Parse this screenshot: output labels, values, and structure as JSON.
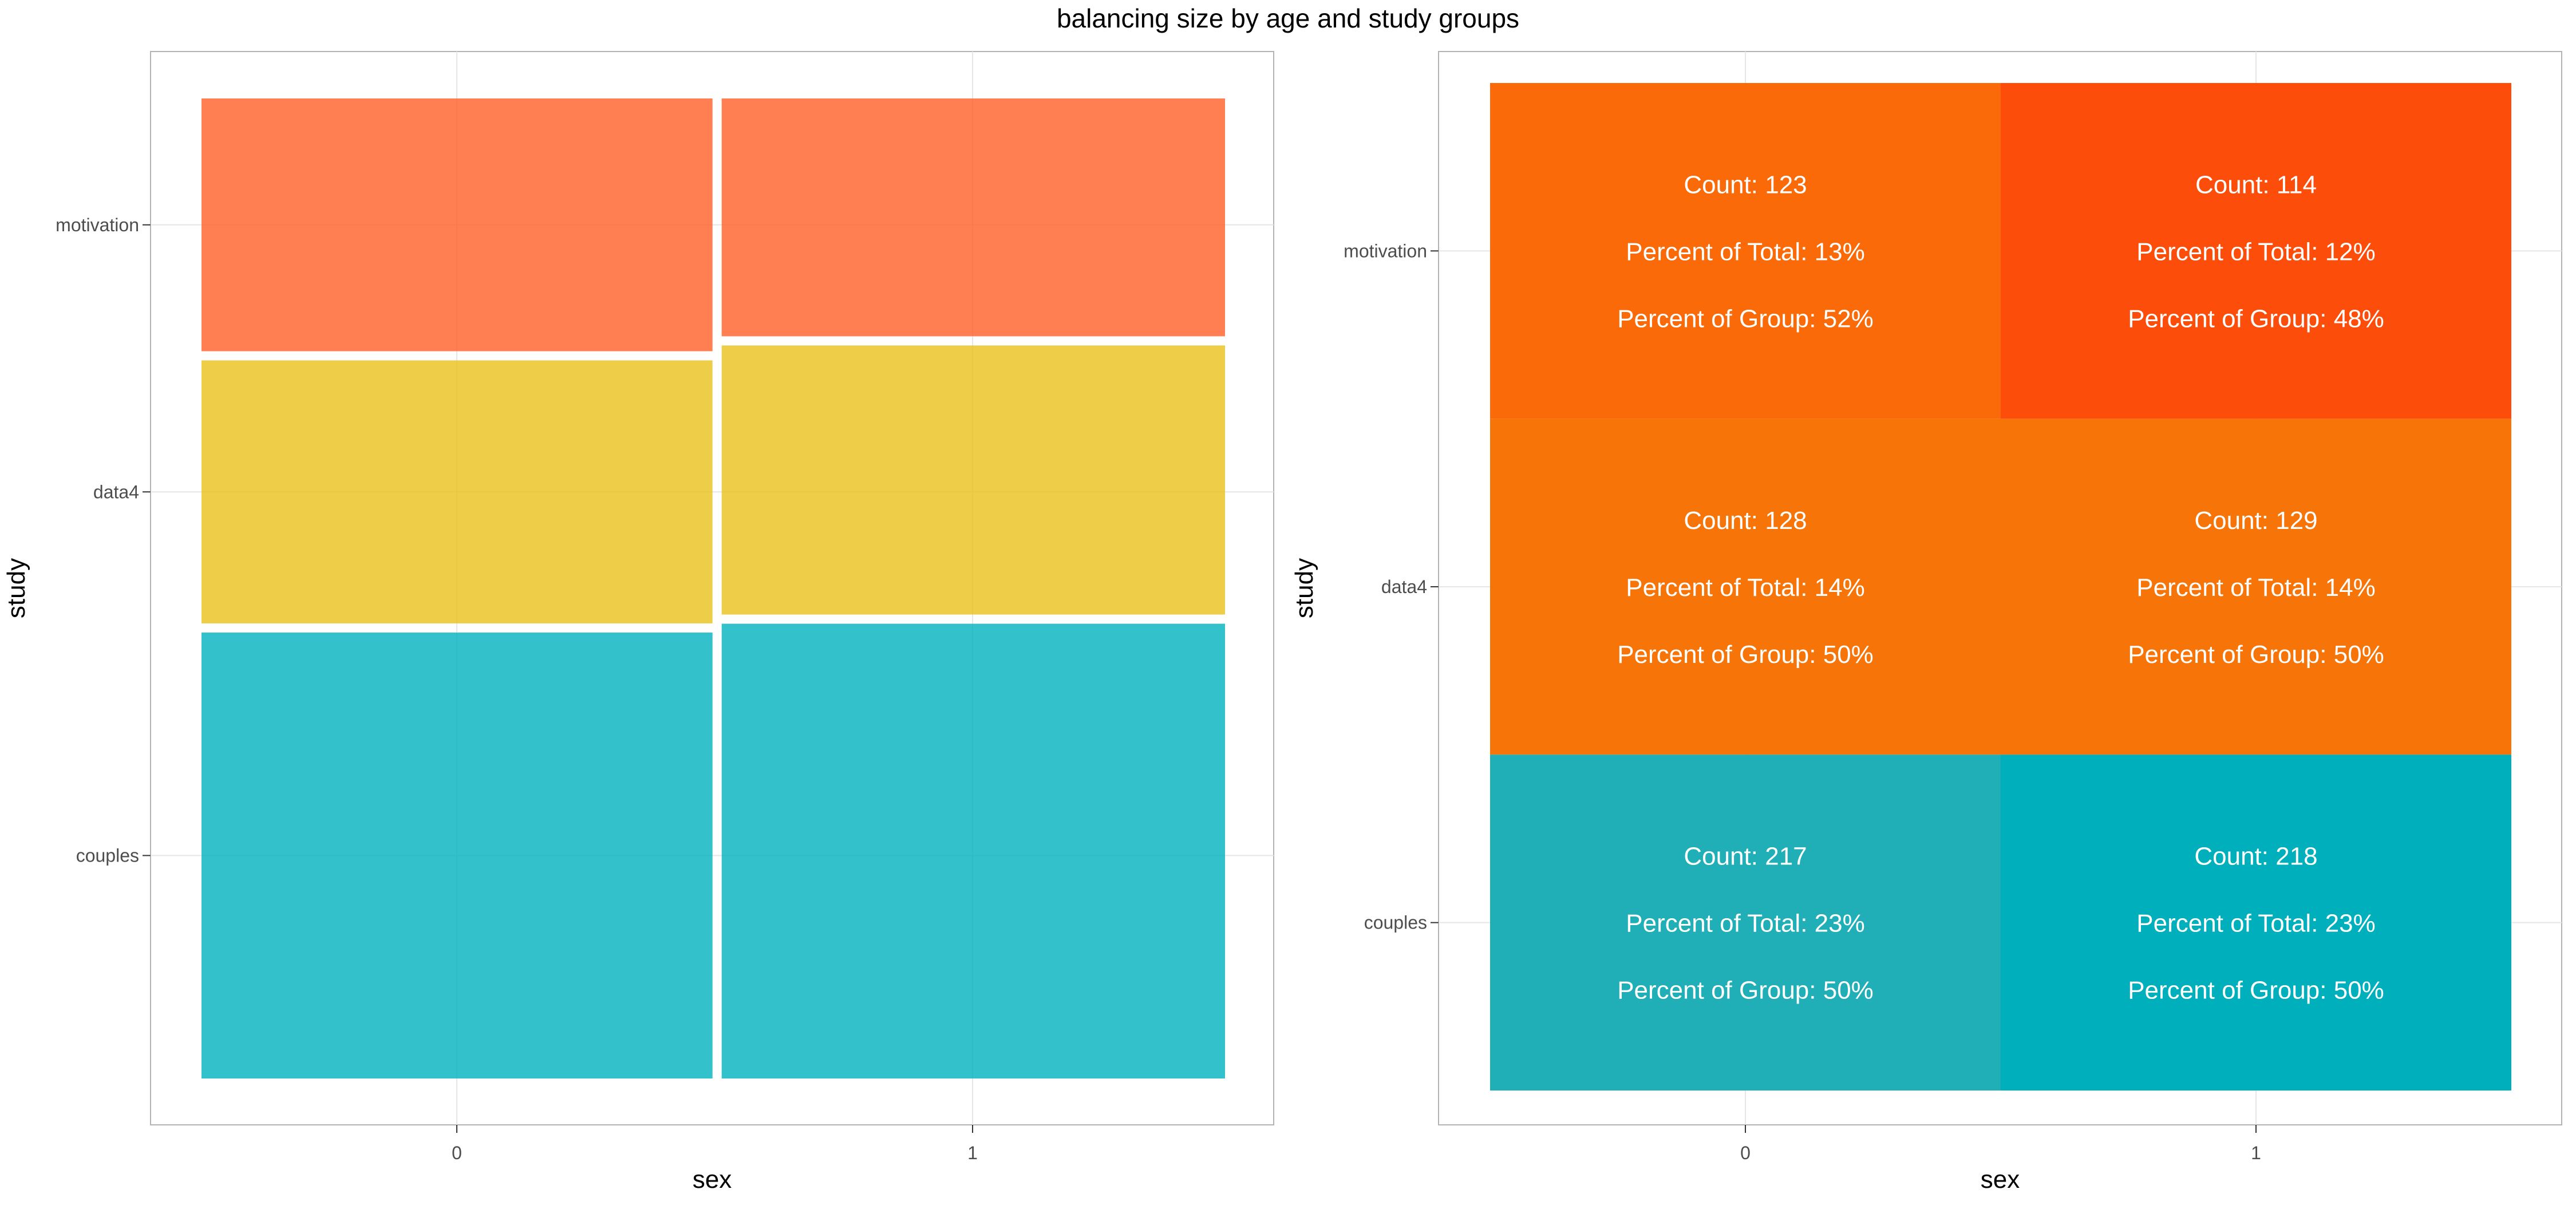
{
  "page_title": "balancing size by age and study groups",
  "chart_data": [
    {
      "type": "mosaic",
      "title": "",
      "xlabel": "sex",
      "ylabel": "study",
      "x_categories": [
        "0",
        "1"
      ],
      "y_categories": [
        "couples",
        "data4",
        "motivation"
      ],
      "colors": {
        "couples": "#00B2BE",
        "data4": "#EAC01C",
        "motivation": "#FF5F27"
      },
      "cells": [
        {
          "sex": "0",
          "study": "couples",
          "count": 217
        },
        {
          "sex": "0",
          "study": "data4",
          "count": 128
        },
        {
          "sex": "0",
          "study": "motivation",
          "count": 123
        },
        {
          "sex": "1",
          "study": "couples",
          "count": 218
        },
        {
          "sex": "1",
          "study": "data4",
          "count": 129
        },
        {
          "sex": "1",
          "study": "motivation",
          "count": 114
        }
      ],
      "grid": true
    },
    {
      "type": "heatmap",
      "title": "",
      "xlabel": "sex",
      "ylabel": "study",
      "x_categories": [
        "0",
        "1"
      ],
      "y_categories": [
        "couples",
        "data4",
        "motivation"
      ],
      "cells": [
        {
          "sex": "0",
          "study": "motivation",
          "count": 123,
          "percent_total": "13%",
          "percent_group": "52%",
          "color": "#FA6A08"
        },
        {
          "sex": "1",
          "study": "motivation",
          "count": 114,
          "percent_total": "12%",
          "percent_group": "48%",
          "color": "#FC4E0A"
        },
        {
          "sex": "0",
          "study": "data4",
          "count": 128,
          "percent_total": "14%",
          "percent_group": "50%",
          "color": "#F77508"
        },
        {
          "sex": "1",
          "study": "data4",
          "count": 129,
          "percent_total": "14%",
          "percent_group": "50%",
          "color": "#F77508"
        },
        {
          "sex": "0",
          "study": "couples",
          "count": 217,
          "percent_total": "23%",
          "percent_group": "50%",
          "color": "#21AFB7"
        },
        {
          "sex": "1",
          "study": "couples",
          "count": 218,
          "percent_total": "23%",
          "percent_group": "50%",
          "color": "#00AFBC"
        }
      ],
      "label_templates": {
        "count": "Count: ",
        "percent_total": "Percent of Total: ",
        "percent_group": "Percent of Group: "
      },
      "grid": true
    }
  ]
}
